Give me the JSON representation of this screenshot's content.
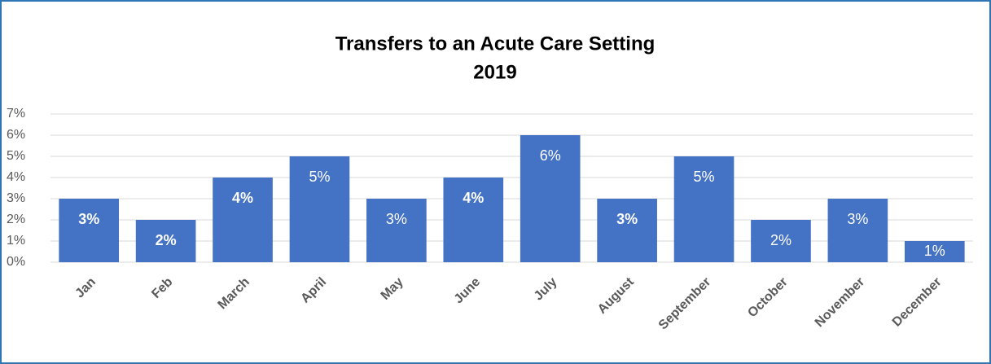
{
  "chart_data": {
    "type": "bar",
    "title": [
      "Transfers to an Acute Care Setting",
      "2019"
    ],
    "categories": [
      "Jan",
      "Feb",
      "March",
      "April",
      "May",
      "June",
      "July",
      "August",
      "September",
      "October",
      "November",
      "December"
    ],
    "values": [
      3,
      2,
      4,
      5,
      3,
      4,
      6,
      3,
      5,
      2,
      3,
      1
    ],
    "value_labels": [
      "3%",
      "2%",
      "4%",
      "5%",
      "3%",
      "4%",
      "6%",
      "3%",
      "5%",
      "2%",
      "3%",
      "1%"
    ],
    "value_label_bold": [
      true,
      true,
      true,
      false,
      false,
      true,
      false,
      true,
      false,
      false,
      false,
      false
    ],
    "color": "#4472c4",
    "ylim": [
      0,
      7
    ],
    "yticks": [
      {
        "value": 0,
        "label": "0%"
      },
      {
        "value": 1,
        "label": "1%"
      },
      {
        "value": 2,
        "label": "2%"
      },
      {
        "value": 3,
        "label": "3%"
      },
      {
        "value": 4,
        "label": "4%"
      },
      {
        "value": 5,
        "label": "5%"
      },
      {
        "value": 6,
        "label": "6%"
      },
      {
        "value": 7,
        "label": "7%"
      }
    ],
    "grid": true
  }
}
